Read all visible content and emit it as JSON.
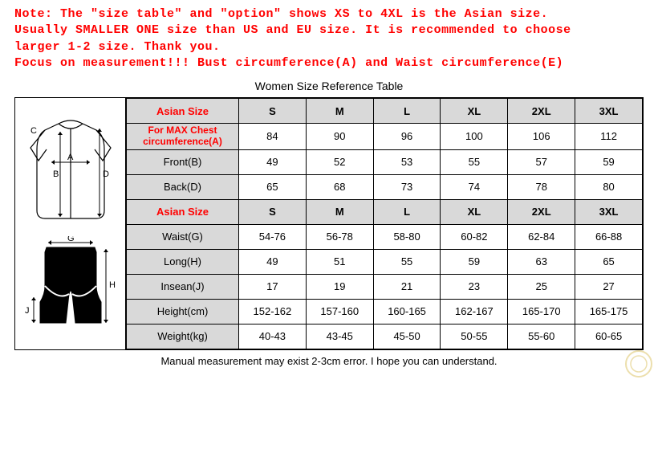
{
  "note": {
    "line1": "Note: The \"size table\" and \"option\" shows XS to 4XL is the Asian size.",
    "line2": "Usually SMALLER ONE size than US and EU size. It is recommended to choose",
    "line3": "larger 1-2 size. Thank you.",
    "line4": "Focus on measurement!!! Bust circumference(A) and Waist circumference(E)"
  },
  "title": "Women Size Reference Table",
  "columns": [
    "S",
    "M",
    "L",
    "XL",
    "2XL",
    "3XL"
  ],
  "rows": [
    {
      "label": "Asian Size",
      "red": true,
      "values": [
        "S",
        "M",
        "L",
        "XL",
        "2XL",
        "3XL"
      ],
      "header": true
    },
    {
      "label": "For MAX Chest circumference(A)",
      "red": true,
      "twoLine": true,
      "values": [
        "84",
        "90",
        "96",
        "100",
        "106",
        "112"
      ]
    },
    {
      "label": "Front(B)",
      "values": [
        "49",
        "52",
        "53",
        "55",
        "57",
        "59"
      ]
    },
    {
      "label": "Back(D)",
      "values": [
        "65",
        "68",
        "73",
        "74",
        "78",
        "80"
      ]
    },
    {
      "label": "Asian Size",
      "red": true,
      "values": [
        "S",
        "M",
        "L",
        "XL",
        "2XL",
        "3XL"
      ],
      "header": true
    },
    {
      "label": "Waist(G)",
      "values": [
        "54-76",
        "56-78",
        "58-80",
        "60-82",
        "62-84",
        "66-88"
      ]
    },
    {
      "label": "Long(H)",
      "values": [
        "49",
        "51",
        "55",
        "59",
        "63",
        "65"
      ]
    },
    {
      "label": "Insean(J)",
      "values": [
        "17",
        "19",
        "21",
        "23",
        "25",
        "27"
      ]
    },
    {
      "label": "Height(cm)",
      "values": [
        "152-162",
        "157-160",
        "160-165",
        "162-167",
        "165-170",
        "165-175"
      ]
    },
    {
      "label": "Weight(kg)",
      "values": [
        "40-43",
        "43-45",
        "45-50",
        "50-55",
        "55-60",
        "60-65"
      ]
    }
  ],
  "footnote": "Manual measurement may exist 2-3cm error. I hope you can understand.",
  "style": {
    "note_color": "#ff0000",
    "header_bg": "#d9d9d9",
    "border_color": "#000000",
    "text_color": "#000000",
    "note_font": "Courier New",
    "table_font": "Arial",
    "note_fontsize": 15,
    "table_fontsize": 13
  }
}
